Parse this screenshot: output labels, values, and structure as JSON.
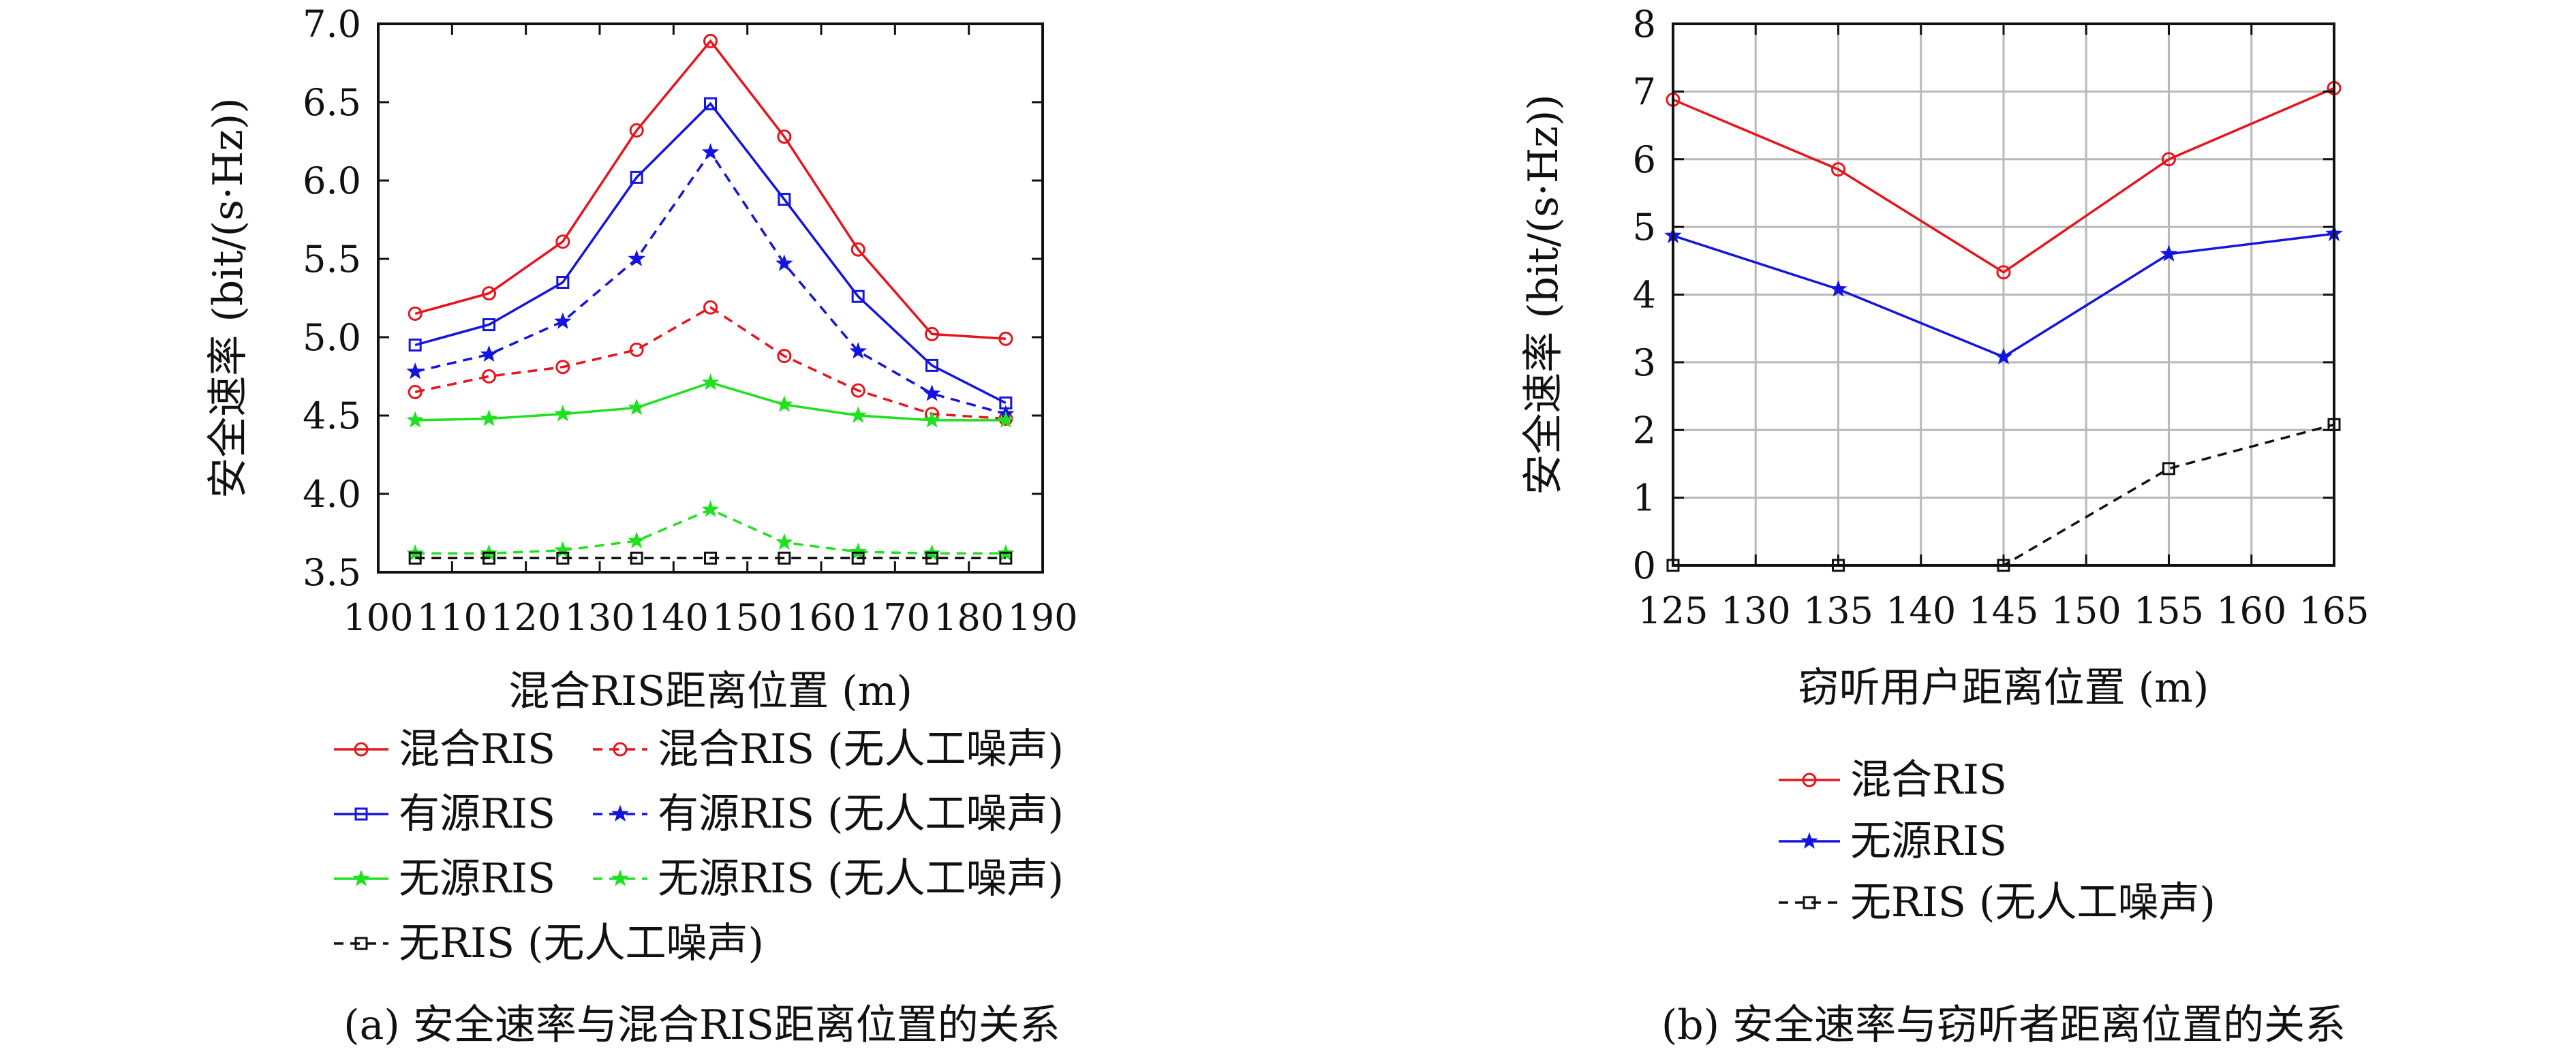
{
  "charts": [
    {
      "id": "a",
      "caption": "(a) 安全速率与混合RIS距离位置的关系",
      "chart_data": {
        "type": "line",
        "xlabel": "混合RIS距离位置 (m)",
        "ylabel": "安全速率 (bit/(s·Hz))",
        "xlim": [
          100,
          190
        ],
        "ylim": [
          3.5,
          7.0
        ],
        "xticks": [
          "100",
          "110",
          "120",
          "130",
          "140",
          "150",
          "160",
          "170",
          "180",
          "190"
        ],
        "yticks": [
          "3.5",
          "4.0",
          "4.5",
          "5.0",
          "5.5",
          "6.0",
          "6.5",
          "7.0"
        ],
        "grid": false,
        "x": [
          105,
          115,
          125,
          135,
          145,
          155,
          165,
          175,
          185
        ],
        "series": [
          {
            "name": "混合RIS",
            "color": "#e8141c",
            "dash": "solid",
            "marker": "circle",
            "values": [
              5.15,
              5.28,
              5.61,
              6.32,
              6.89,
              6.28,
              5.56,
              5.02,
              4.99
            ]
          },
          {
            "name": "混合RIS (无人工噪声)",
            "color": "#e8141c",
            "dash": "dashed",
            "marker": "circle",
            "values": [
              4.65,
              4.75,
              4.81,
              4.92,
              5.19,
              4.88,
              4.66,
              4.51,
              4.48
            ]
          },
          {
            "name": "有源RIS",
            "color": "#1414e0",
            "dash": "solid",
            "marker": "square",
            "values": [
              4.95,
              5.08,
              5.35,
              6.02,
              6.49,
              5.88,
              5.26,
              4.82,
              4.58
            ]
          },
          {
            "name": "有源RIS (无人工噪声)",
            "color": "#1414e0",
            "dash": "dashed",
            "marker": "star",
            "values": [
              4.78,
              4.89,
              5.1,
              5.5,
              6.18,
              5.47,
              4.91,
              4.64,
              4.51
            ]
          },
          {
            "name": "无源RIS",
            "color": "#20e020",
            "dash": "solid",
            "marker": "star",
            "values": [
              4.47,
              4.48,
              4.51,
              4.55,
              4.71,
              4.57,
              4.5,
              4.47,
              4.47
            ]
          },
          {
            "name": "无源RIS (无人工噪声)",
            "color": "#20e020",
            "dash": "dashed",
            "marker": "star",
            "values": [
              3.62,
              3.62,
              3.64,
              3.7,
              3.9,
              3.69,
              3.63,
              3.62,
              3.62
            ]
          },
          {
            "name": "无RIS (无人工噪声)",
            "color": "#111111",
            "dash": "dashed",
            "marker": "square",
            "values": [
              3.59,
              3.59,
              3.59,
              3.59,
              3.59,
              3.59,
              3.59,
              3.59,
              3.59
            ]
          }
        ]
      }
    },
    {
      "id": "b",
      "caption": "(b) 安全速率与窃听者距离位置的关系",
      "chart_data": {
        "type": "line",
        "xlabel": "窃听用户距离位置 (m)",
        "ylabel": "安全速率 (bit/(s·Hz))",
        "xlim": [
          125,
          165
        ],
        "ylim": [
          0,
          8
        ],
        "xticks": [
          "125",
          "130",
          "135",
          "140",
          "145",
          "150",
          "155",
          "160",
          "165"
        ],
        "yticks": [
          "0",
          "1",
          "2",
          "3",
          "4",
          "5",
          "6",
          "7",
          "8"
        ],
        "grid": true,
        "x": [
          125,
          135,
          145,
          155,
          165
        ],
        "series": [
          {
            "name": "混合RIS",
            "color": "#e8141c",
            "dash": "solid",
            "marker": "circle",
            "values": [
              6.88,
              5.85,
              4.33,
              6.0,
              7.05
            ]
          },
          {
            "name": "无源RIS",
            "color": "#1414e0",
            "dash": "solid",
            "marker": "star",
            "values": [
              4.87,
              4.08,
              3.08,
              4.6,
              4.9
            ]
          },
          {
            "name": "无RIS (无人工噪声)",
            "color": "#111111",
            "dash": "dashed",
            "marker": "square",
            "values": [
              0,
              0,
              0,
              1.43,
              2.08
            ]
          }
        ]
      }
    }
  ]
}
